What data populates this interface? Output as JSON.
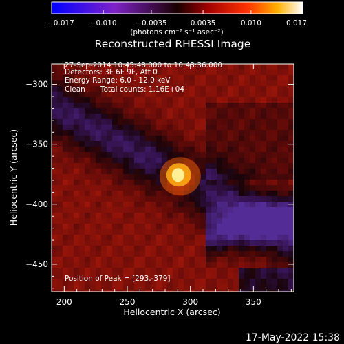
{
  "chart_data": {
    "type": "heatmap",
    "title": "Reconstructed RHESSI Image",
    "xlabel": "Heliocentric X (arcsec)",
    "ylabel": "Heliocentric Y (arcsec)",
    "xlim": [
      190,
      382
    ],
    "ylim": [
      -473,
      -283
    ],
    "xticks": [
      200,
      250,
      300,
      350
    ],
    "yticks": [
      -300,
      -350,
      -400,
      -450
    ],
    "colorbar": {
      "min": -0.017,
      "max": 0.017,
      "ticks": [
        -0.017,
        -0.01,
        -0.0035,
        0.0035,
        0.01,
        0.017
      ],
      "tick_labels": [
        "−0.017",
        "−0.010",
        "−0.0035",
        "0.0035",
        "0.010",
        "0.017"
      ],
      "units_label": "(photons cm⁻² s⁻¹ asec⁻²)"
    },
    "annotations": {
      "time_range": "27-Sep-2014 10:45:48.000 to 10:48:36.000",
      "detectors": "Detectors: 3F 6F 9F, Att 0",
      "energy_range": "Energy Range: 6.0 - 12.0 keV",
      "algorithm": "Clean",
      "total_counts": "Total counts: 1.16E+04",
      "peak_position": "Position of Peak = [293,-379]"
    },
    "peak": {
      "x": 293,
      "y": -379
    },
    "footer_timestamp": "17-May-2022 15:38"
  }
}
